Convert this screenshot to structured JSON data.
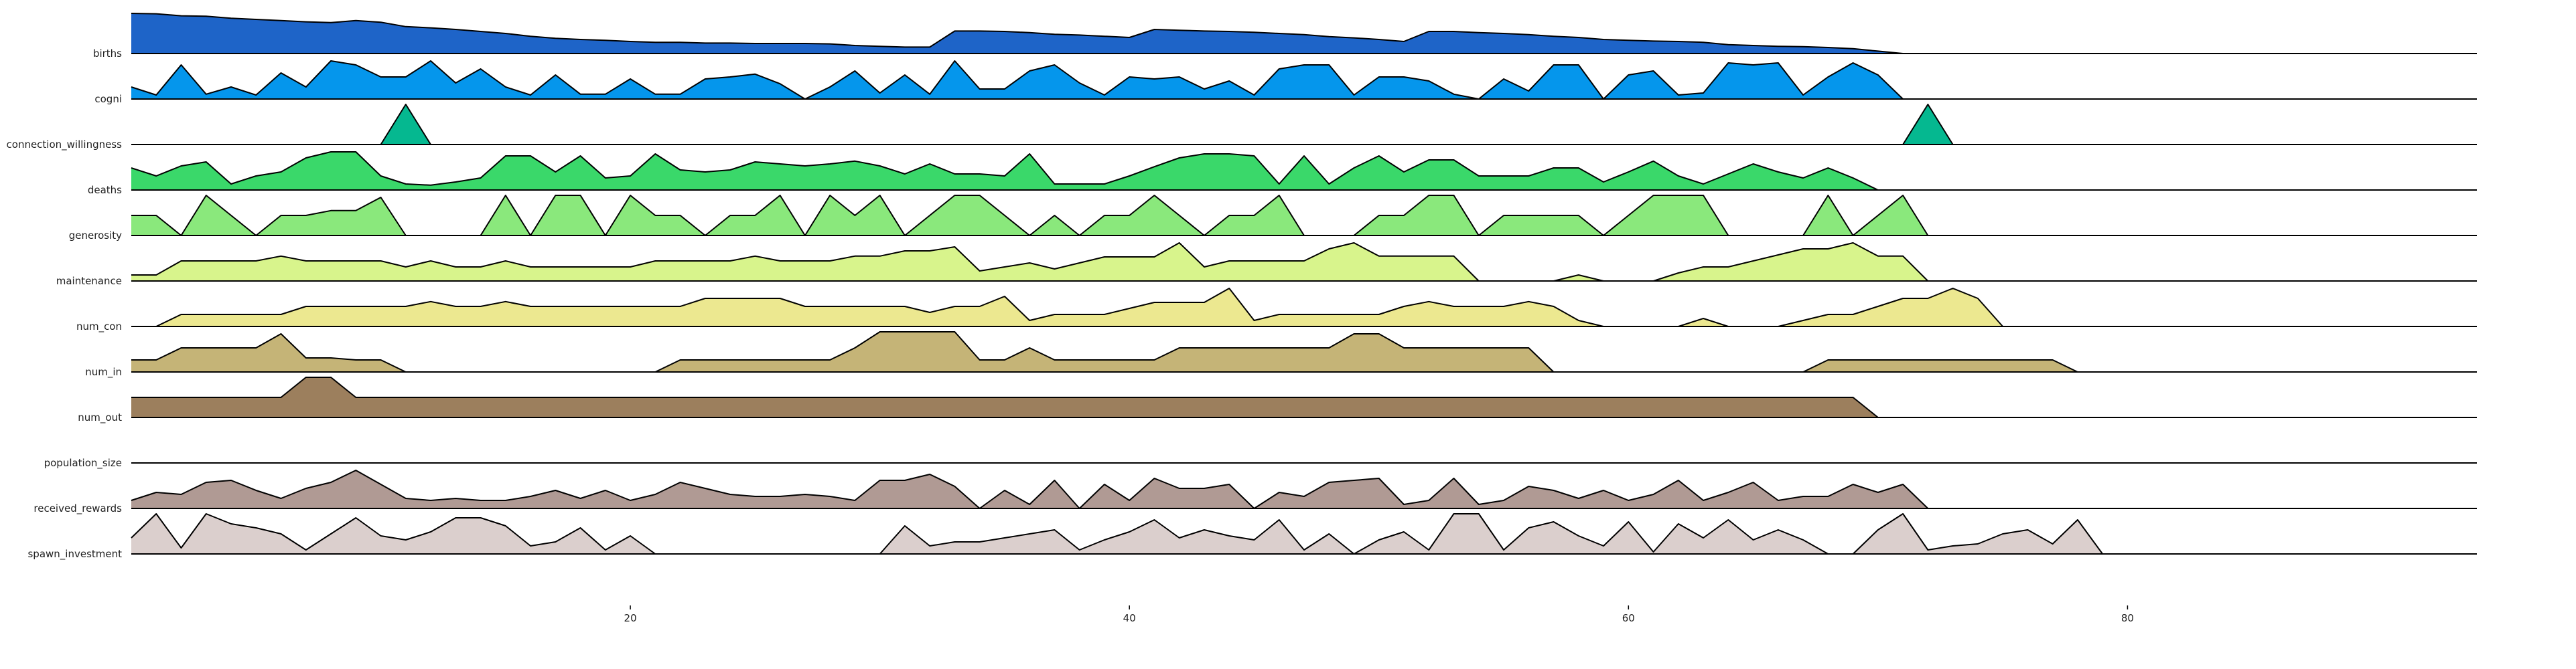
{
  "chart_data": {
    "type": "area",
    "title": "",
    "xlabel": "",
    "ylabel": "",
    "xlim": [
      0,
      94
    ],
    "x_ticks": [
      20,
      40,
      60,
      80
    ],
    "x_start": 0,
    "grid": false,
    "series": [
      {
        "name": "births",
        "color": "#1e64c8",
        "values": [
          1.0,
          0.99,
          0.94,
          0.93,
          0.88,
          0.85,
          0.82,
          0.79,
          0.77,
          0.82,
          0.78,
          0.67,
          0.64,
          0.6,
          0.55,
          0.5,
          0.43,
          0.38,
          0.35,
          0.33,
          0.3,
          0.28,
          0.28,
          0.26,
          0.26,
          0.25,
          0.25,
          0.25,
          0.24,
          0.2,
          0.18,
          0.16,
          0.16,
          0.56,
          0.56,
          0.55,
          0.52,
          0.48,
          0.46,
          0.43,
          0.4,
          0.6,
          0.58,
          0.56,
          0.55,
          0.53,
          0.5,
          0.47,
          0.42,
          0.39,
          0.35,
          0.3,
          0.55,
          0.55,
          0.52,
          0.5,
          0.47,
          0.43,
          0.4,
          0.35,
          0.33,
          0.31,
          0.3,
          0.28,
          0.22,
          0.2,
          0.18,
          0.17,
          0.15,
          0.12,
          0.06,
          0.0
        ]
      },
      {
        "name": "cogni",
        "color": "#0596ec",
        "values": [
          0.3,
          0.1,
          0.85,
          0.12,
          0.3,
          0.1,
          0.65,
          0.3,
          0.95,
          0.85,
          0.55,
          0.55,
          0.95,
          0.4,
          0.75,
          0.3,
          0.1,
          0.6,
          0.12,
          0.12,
          0.5,
          0.12,
          0.12,
          0.5,
          0.55,
          0.62,
          0.38,
          0.0,
          0.3,
          0.7,
          0.15,
          0.6,
          0.12,
          0.95,
          0.25,
          0.25,
          0.7,
          0.85,
          0.4,
          0.1,
          0.55,
          0.5,
          0.55,
          0.25,
          0.45,
          0.1,
          0.75,
          0.85,
          0.85,
          0.1,
          0.55,
          0.55,
          0.45,
          0.12,
          0.0,
          0.5,
          0.2,
          0.85,
          0.85,
          0.0,
          0.6,
          0.7,
          0.1,
          0.15,
          0.9,
          0.85,
          0.9,
          0.1,
          0.55,
          0.9,
          0.6,
          0.0
        ]
      },
      {
        "name": "connection_willingness",
        "color": "#05b890",
        "values": [
          0.0,
          0.0,
          0.0,
          0.0,
          0.0,
          0.0,
          0.0,
          0.0,
          0.0,
          0.0,
          0.0,
          1.0,
          0.0,
          0.0,
          0.0,
          0.0,
          0.0,
          0.0,
          0.0,
          0.0,
          0.0,
          0.0,
          0.0,
          0.0,
          0.0,
          0.0,
          0.0,
          0.0,
          0.0,
          0.0,
          0.0,
          0.0,
          0.0,
          0.0,
          0.0,
          0.0,
          0.0,
          0.0,
          0.0,
          0.0,
          0.0,
          0.0,
          0.0,
          0.0,
          0.0,
          0.0,
          0.0,
          0.0,
          0.0,
          0.0,
          0.0,
          0.0,
          0.0,
          0.0,
          0.0,
          0.0,
          0.0,
          0.0,
          0.0,
          0.0,
          0.0,
          0.0,
          0.0,
          0.0,
          0.0,
          0.0,
          0.0,
          0.0,
          0.0,
          0.0,
          0.0,
          0.0,
          1.0,
          0.0
        ]
      },
      {
        "name": "deaths",
        "color": "#3ad86a",
        "values": [
          0.55,
          0.35,
          0.6,
          0.7,
          0.15,
          0.35,
          0.45,
          0.8,
          0.95,
          0.95,
          0.35,
          0.15,
          0.12,
          0.2,
          0.3,
          0.85,
          0.85,
          0.45,
          0.85,
          0.3,
          0.35,
          0.9,
          0.5,
          0.45,
          0.5,
          0.7,
          0.65,
          0.6,
          0.65,
          0.72,
          0.6,
          0.4,
          0.65,
          0.4,
          0.4,
          0.35,
          0.9,
          0.15,
          0.15,
          0.15,
          0.35,
          0.58,
          0.8,
          0.9,
          0.9,
          0.85,
          0.15,
          0.85,
          0.15,
          0.55,
          0.85,
          0.45,
          0.75,
          0.75,
          0.35,
          0.35,
          0.35,
          0.55,
          0.55,
          0.2,
          0.45,
          0.72,
          0.35,
          0.15,
          0.4,
          0.65,
          0.45,
          0.3,
          0.55,
          0.3,
          0.0
        ]
      },
      {
        "name": "generosity",
        "color": "#8ae87c",
        "values": [
          0.5,
          0.5,
          0.0,
          1.0,
          0.5,
          0.0,
          0.5,
          0.5,
          0.62,
          0.62,
          0.95,
          0.0,
          0.0,
          0.0,
          0.0,
          1.0,
          0.0,
          1.0,
          1.0,
          0.0,
          1.0,
          0.5,
          0.5,
          0.0,
          0.5,
          0.5,
          1.0,
          0.0,
          1.0,
          0.5,
          1.0,
          0.0,
          0.5,
          1.0,
          1.0,
          0.5,
          0.0,
          0.5,
          0.0,
          0.5,
          0.5,
          1.0,
          0.5,
          0.0,
          0.5,
          0.5,
          1.0,
          0.0,
          0.0,
          0.0,
          0.5,
          0.5,
          1.0,
          1.0,
          0.0,
          0.5,
          0.5,
          0.5,
          0.5,
          0.0,
          0.5,
          1.0,
          1.0,
          1.0,
          0.0,
          0.0,
          0.0,
          0.0,
          1.0,
          0.0,
          0.5,
          1.0,
          0.0
        ]
      },
      {
        "name": "maintenance",
        "color": "#d8f48c",
        "values": [
          0.15,
          0.15,
          0.5,
          0.5,
          0.5,
          0.5,
          0.62,
          0.5,
          0.5,
          0.5,
          0.5,
          0.35,
          0.5,
          0.35,
          0.35,
          0.5,
          0.35,
          0.35,
          0.35,
          0.35,
          0.35,
          0.5,
          0.5,
          0.5,
          0.5,
          0.62,
          0.5,
          0.5,
          0.5,
          0.62,
          0.62,
          0.75,
          0.75,
          0.85,
          0.25,
          0.35,
          0.45,
          0.3,
          0.45,
          0.6,
          0.6,
          0.6,
          0.95,
          0.35,
          0.5,
          0.5,
          0.5,
          0.5,
          0.8,
          0.95,
          0.62,
          0.62,
          0.62,
          0.62,
          0.0,
          0.0,
          0.0,
          0.0,
          0.15,
          0.0,
          0.0,
          0.0,
          0.2,
          0.35,
          0.35,
          0.5,
          0.65,
          0.8,
          0.8,
          0.95,
          0.62,
          0.62,
          0.0
        ]
      },
      {
        "name": "num_con",
        "color": "#ece890",
        "values": [
          0.0,
          0.0,
          0.3,
          0.3,
          0.3,
          0.3,
          0.3,
          0.5,
          0.5,
          0.5,
          0.5,
          0.5,
          0.62,
          0.5,
          0.5,
          0.62,
          0.5,
          0.5,
          0.5,
          0.5,
          0.5,
          0.5,
          0.5,
          0.7,
          0.7,
          0.7,
          0.7,
          0.5,
          0.5,
          0.5,
          0.5,
          0.5,
          0.35,
          0.5,
          0.5,
          0.75,
          0.15,
          0.3,
          0.3,
          0.3,
          0.45,
          0.6,
          0.6,
          0.6,
          0.95,
          0.15,
          0.3,
          0.3,
          0.3,
          0.3,
          0.3,
          0.5,
          0.62,
          0.5,
          0.5,
          0.5,
          0.62,
          0.5,
          0.15,
          0.0,
          0.0,
          0.0,
          0.0,
          0.2,
          0.0,
          0.0,
          0.0,
          0.15,
          0.3,
          0.3,
          0.5,
          0.7,
          0.7,
          0.95,
          0.7,
          0.0
        ]
      },
      {
        "name": "num_in",
        "color": "#c5b477",
        "values": [
          0.3,
          0.3,
          0.6,
          0.6,
          0.6,
          0.6,
          0.95,
          0.35,
          0.35,
          0.3,
          0.3,
          0.0,
          0.0,
          0.0,
          0.0,
          0.0,
          0.0,
          0.0,
          0.0,
          0.0,
          0.0,
          0.0,
          0.3,
          0.3,
          0.3,
          0.3,
          0.3,
          0.3,
          0.3,
          0.6,
          1.0,
          1.0,
          1.0,
          1.0,
          0.3,
          0.3,
          0.6,
          0.3,
          0.3,
          0.3,
          0.3,
          0.3,
          0.6,
          0.6,
          0.6,
          0.6,
          0.6,
          0.6,
          0.6,
          0.95,
          0.95,
          0.6,
          0.6,
          0.6,
          0.6,
          0.6,
          0.6,
          0.0,
          0.0,
          0.0,
          0.0,
          0.0,
          0.0,
          0.0,
          0.0,
          0.0,
          0.0,
          0.0,
          0.3,
          0.3,
          0.3,
          0.3,
          0.3,
          0.3,
          0.3,
          0.3,
          0.3,
          0.3,
          0.0
        ]
      },
      {
        "name": "num_out",
        "color": "#9c7f5d",
        "values": [
          0.5,
          0.5,
          0.5,
          0.5,
          0.5,
          0.5,
          0.5,
          1.0,
          1.0,
          0.5,
          0.5,
          0.5,
          0.5,
          0.5,
          0.5,
          0.5,
          0.5,
          0.5,
          0.5,
          0.5,
          0.5,
          0.5,
          0.5,
          0.5,
          0.5,
          0.5,
          0.5,
          0.5,
          0.5,
          0.5,
          0.5,
          0.5,
          0.5,
          0.5,
          0.5,
          0.5,
          0.5,
          0.5,
          0.5,
          0.5,
          0.5,
          0.5,
          0.5,
          0.5,
          0.5,
          0.5,
          0.5,
          0.5,
          0.5,
          0.5,
          0.5,
          0.5,
          0.5,
          0.5,
          0.5,
          0.5,
          0.5,
          0.5,
          0.5,
          0.5,
          0.5,
          0.5,
          0.5,
          0.5,
          0.5,
          0.5,
          0.5,
          0.5,
          0.5,
          0.5,
          0.0
        ]
      },
      {
        "name": "population_size",
        "color": "#b09a94",
        "values": []
      },
      {
        "name": "received_rewards",
        "color": "#b09a94",
        "values": [
          0.2,
          0.4,
          0.35,
          0.65,
          0.7,
          0.45,
          0.25,
          0.5,
          0.65,
          0.95,
          0.6,
          0.25,
          0.2,
          0.25,
          0.2,
          0.2,
          0.3,
          0.45,
          0.25,
          0.45,
          0.2,
          0.35,
          0.65,
          0.5,
          0.35,
          0.3,
          0.3,
          0.35,
          0.3,
          0.2,
          0.7,
          0.7,
          0.85,
          0.55,
          0.0,
          0.45,
          0.1,
          0.7,
          0.0,
          0.6,
          0.2,
          0.75,
          0.5,
          0.5,
          0.6,
          0.0,
          0.4,
          0.3,
          0.65,
          0.7,
          0.75,
          0.1,
          0.2,
          0.75,
          0.1,
          0.2,
          0.55,
          0.45,
          0.25,
          0.45,
          0.2,
          0.35,
          0.7,
          0.2,
          0.4,
          0.65,
          0.2,
          0.3,
          0.3,
          0.6,
          0.4,
          0.6,
          0.0
        ]
      },
      {
        "name": "spawn_investment",
        "color": "#dbcfcd",
        "values": [
          0.4,
          1.0,
          0.15,
          1.0,
          0.75,
          0.65,
          0.5,
          0.1,
          0.5,
          0.9,
          0.45,
          0.35,
          0.55,
          0.9,
          0.9,
          0.7,
          0.2,
          0.3,
          0.65,
          0.1,
          0.45,
          0.0,
          0.0,
          0.0,
          0.0,
          0.0,
          0.0,
          0.0,
          0.0,
          0.0,
          0.0,
          0.7,
          0.2,
          0.3,
          0.3,
          0.4,
          0.5,
          0.6,
          0.1,
          0.35,
          0.55,
          0.85,
          0.4,
          0.6,
          0.45,
          0.35,
          0.85,
          0.1,
          0.5,
          0.0,
          0.35,
          0.55,
          0.1,
          1.0,
          1.0,
          0.1,
          0.65,
          0.8,
          0.45,
          0.2,
          0.8,
          0.05,
          0.75,
          0.4,
          0.85,
          0.35,
          0.6,
          0.35,
          0.0,
          0.0,
          0.6,
          1.0,
          0.1,
          0.2,
          0.25,
          0.5,
          0.6,
          0.25,
          0.85,
          0.0
        ]
      }
    ]
  }
}
